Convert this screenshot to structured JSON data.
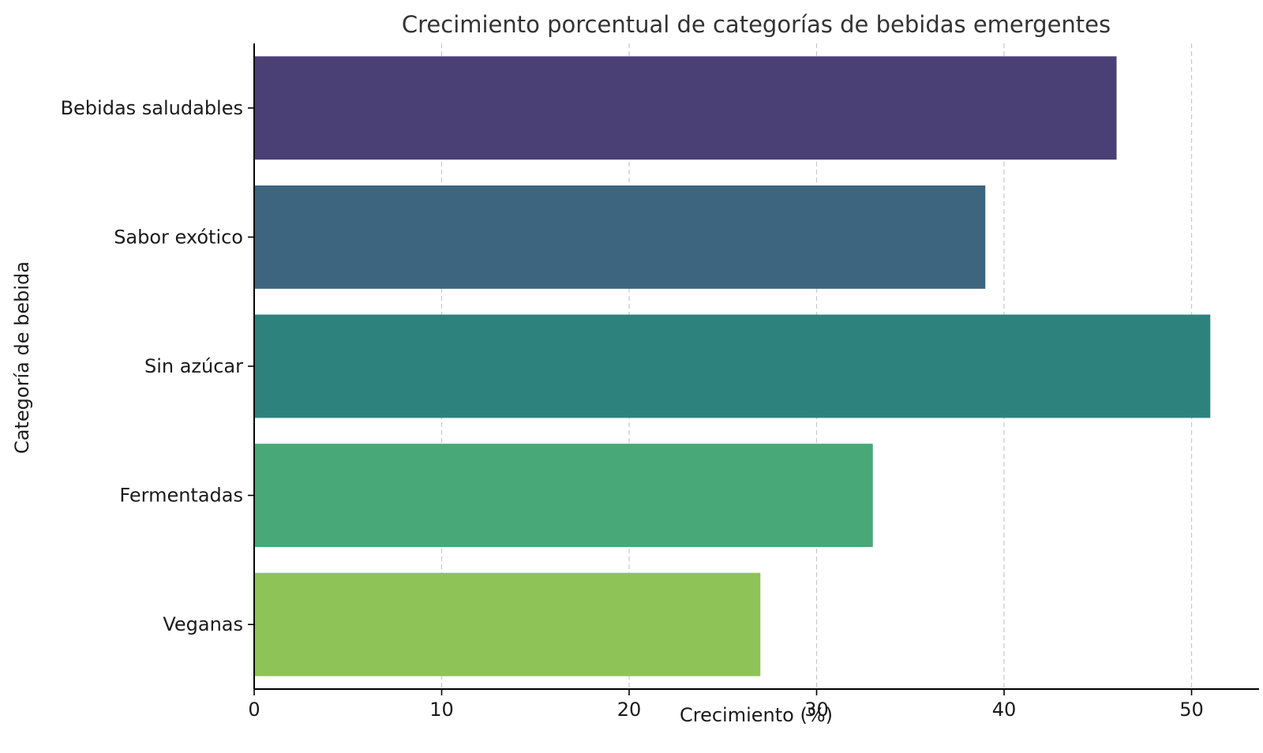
{
  "chart_data": {
    "type": "bar",
    "orientation": "horizontal",
    "title": "Crecimiento porcentual de categorías de bebidas emergentes",
    "xlabel": "Crecimiento (%)",
    "ylabel": "Categoría de bebida",
    "categories": [
      "Bebidas saludables",
      "Sabor exótico",
      "Sin azúcar",
      "Fermentadas",
      "Veganas"
    ],
    "values": [
      46,
      39,
      51,
      33,
      27
    ],
    "colors": [
      "#4b4076",
      "#3d6580",
      "#2e827e",
      "#48a878",
      "#8ec457"
    ],
    "xlim": [
      0,
      53.6
    ],
    "xticks": [
      0,
      10,
      20,
      30,
      40,
      50
    ],
    "grid": "x-dashed",
    "legend": "none"
  }
}
